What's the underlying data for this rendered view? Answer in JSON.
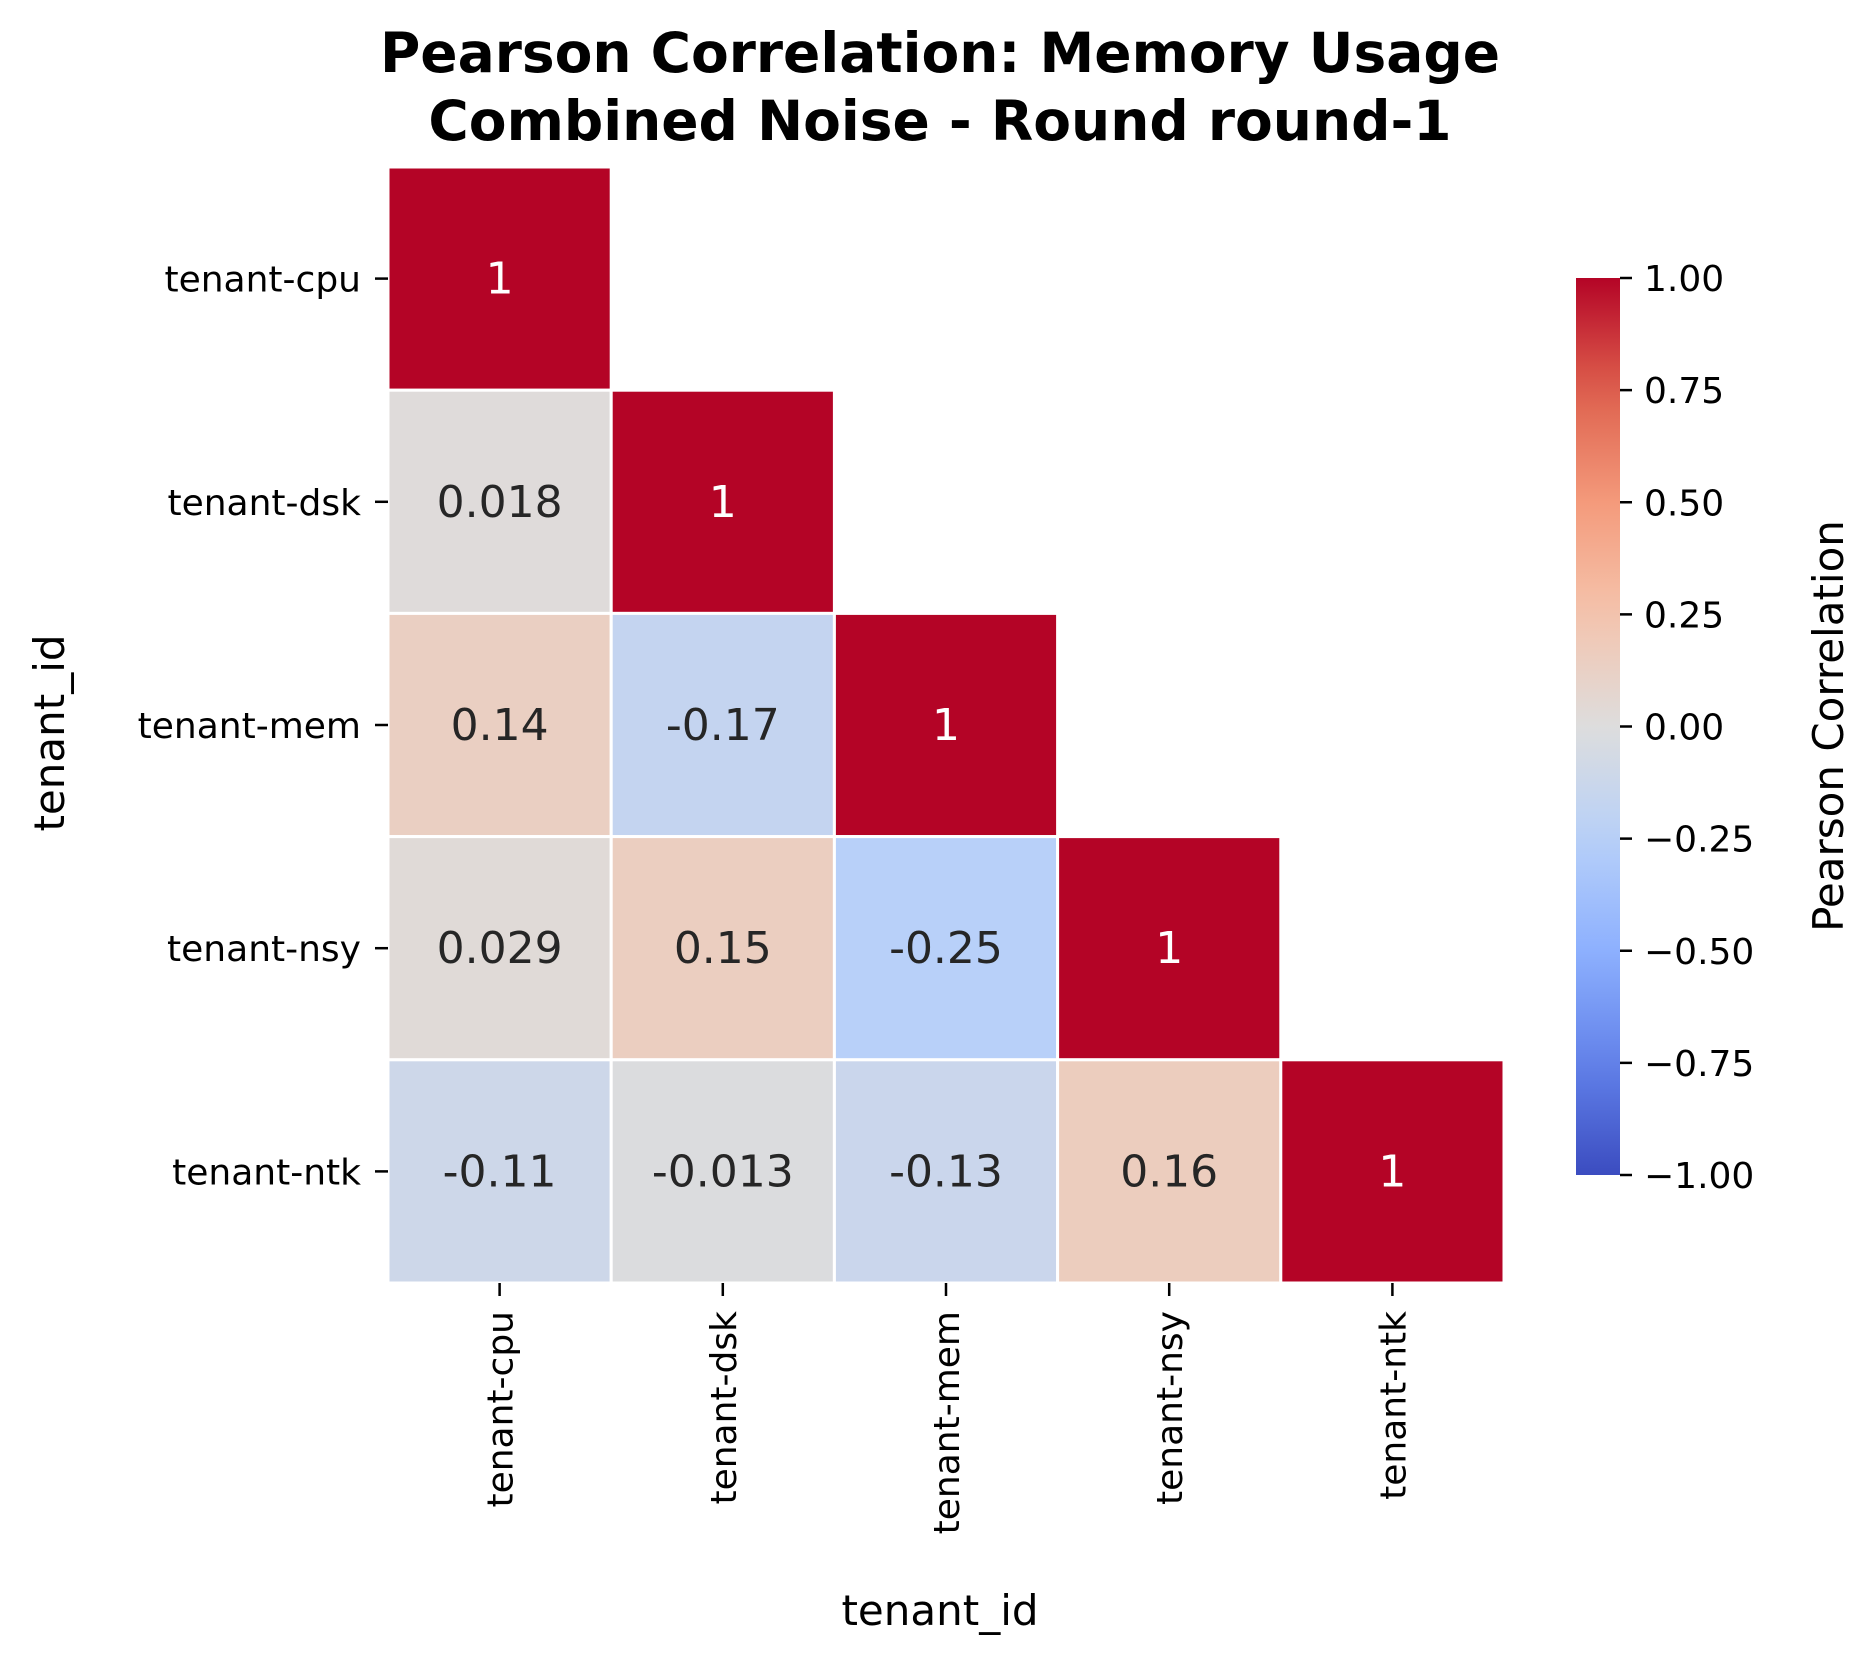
{
  "chart_data": {
    "type": "heatmap",
    "title_lines": [
      "Pearson Correlation: Memory Usage",
      "Combined Noise - Round round-1"
    ],
    "xlabel": "tenant_id",
    "ylabel": "tenant_id",
    "row_labels": [
      "tenant-cpu",
      "tenant-dsk",
      "tenant-mem",
      "tenant-nsy",
      "tenant-ntk"
    ],
    "col_labels": [
      "tenant-cpu",
      "tenant-dsk",
      "tenant-mem",
      "tenant-nsy",
      "tenant-ntk"
    ],
    "mask": "upper-triangle",
    "values": [
      [
        1,
        null,
        null,
        null,
        null
      ],
      [
        0.018,
        1,
        null,
        null,
        null
      ],
      [
        0.14,
        -0.17,
        1,
        null,
        null
      ],
      [
        0.029,
        0.15,
        -0.25,
        1,
        null
      ],
      [
        -0.11,
        -0.013,
        -0.13,
        0.16,
        1
      ]
    ],
    "cell_labels": [
      [
        "1",
        "",
        "",
        "",
        ""
      ],
      [
        "0.018",
        "1",
        "",
        "",
        ""
      ],
      [
        "0.14",
        "-0.17",
        "1",
        "",
        ""
      ],
      [
        "0.029",
        "0.15",
        "-0.25",
        "1",
        ""
      ],
      [
        "-0.11",
        "-0.013",
        "-0.13",
        "0.16",
        "1"
      ]
    ],
    "colorbar": {
      "label": "Pearson Correlation",
      "colormap": "coolwarm",
      "vmin": -1.0,
      "vmax": 1.0,
      "ticks": [
        1.0,
        0.75,
        0.5,
        0.25,
        0.0,
        -0.25,
        -0.5,
        -0.75,
        -1.0
      ],
      "tick_labels": [
        "1.00",
        "0.75",
        "0.50",
        "0.25",
        "0.00",
        "−0.25",
        "−0.50",
        "−0.75",
        "−1.00"
      ]
    },
    "colors": {
      "cell_border": "#ffffff",
      "dark_text": "#262626",
      "light_text": "#ffffff"
    }
  }
}
